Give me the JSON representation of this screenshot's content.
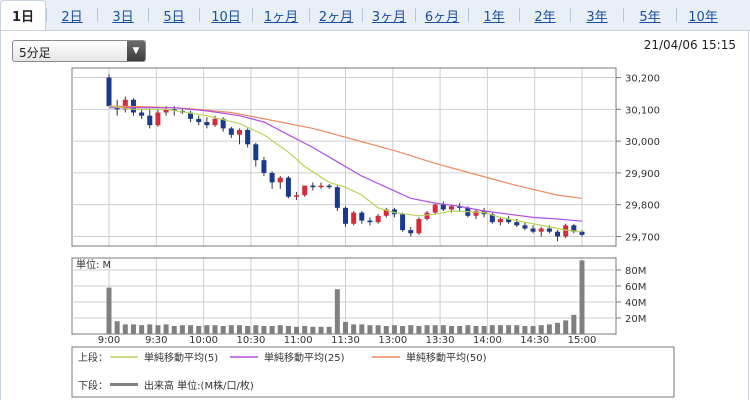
{
  "tabs": [
    {
      "label": "1日",
      "active": true
    },
    {
      "label": "2日"
    },
    {
      "label": "3日"
    },
    {
      "label": "5日"
    },
    {
      "label": "10日"
    },
    {
      "label": "1ヶ月"
    },
    {
      "label": "2ヶ月"
    },
    {
      "label": "3ヶ月"
    },
    {
      "label": "6ヶ月"
    },
    {
      "label": "1年"
    },
    {
      "label": "2年"
    },
    {
      "label": "3年"
    },
    {
      "label": "5年"
    },
    {
      "label": "10年"
    }
  ],
  "interval_select": {
    "value": "5分足"
  },
  "timestamp": "21/04/06 15:15",
  "colors": {
    "up": "#d62b3a",
    "down": "#1a3a8f",
    "ma5": "#b9d45a",
    "ma25": "#b04fe0",
    "ma50": "#f08a60",
    "volume": "#808080",
    "grid": "#cfcfcf"
  },
  "chart_data": [
    {
      "type": "candlestick",
      "x_tick_labels": [
        "9:00",
        "9:30",
        "10:00",
        "10:30",
        "11:00",
        "11:30",
        "13:00",
        "13:30",
        "14:00",
        "14:30",
        "15:00"
      ],
      "ylim": [
        29670,
        30230
      ],
      "y_ticks": [
        30200,
        30100,
        30000,
        29900,
        29800,
        29700
      ],
      "y_tick_labels": [
        "30,200",
        "30,100",
        "30,000",
        "29,900",
        "29,800",
        "29,700"
      ],
      "candles": [
        [
          30200,
          30210,
          30110,
          30110
        ],
        [
          30110,
          30130,
          30080,
          30100
        ],
        [
          30100,
          30140,
          30090,
          30130
        ],
        [
          30130,
          30135,
          30080,
          30090
        ],
        [
          30090,
          30100,
          30070,
          30080
        ],
        [
          30080,
          30100,
          30040,
          30050
        ],
        [
          30050,
          30100,
          30045,
          30090
        ],
        [
          30090,
          30110,
          30080,
          30100
        ],
        [
          30100,
          30110,
          30080,
          30095
        ],
        [
          30095,
          30100,
          30085,
          30090
        ],
        [
          30090,
          30095,
          30060,
          30070
        ],
        [
          30070,
          30080,
          30050,
          30060
        ],
        [
          30060,
          30075,
          30040,
          30050
        ],
        [
          30050,
          30080,
          30045,
          30070
        ],
        [
          30070,
          30075,
          30030,
          30040
        ],
        [
          30040,
          30045,
          30010,
          30020
        ],
        [
          30020,
          30040,
          29990,
          30035
        ],
        [
          30035,
          30040,
          29980,
          29990
        ],
        [
          29990,
          29995,
          29920,
          29940
        ],
        [
          29940,
          29950,
          29890,
          29900
        ],
        [
          29900,
          29905,
          29850,
          29870
        ],
        [
          29870,
          29890,
          29850,
          29885
        ],
        [
          29885,
          29890,
          29820,
          29825
        ],
        [
          29825,
          29840,
          29815,
          29830
        ],
        [
          29830,
          29860,
          29825,
          29860
        ],
        [
          29860,
          29870,
          29845,
          29855
        ],
        [
          29855,
          29870,
          29850,
          29860
        ],
        [
          29860,
          29865,
          29850,
          29855
        ],
        [
          29855,
          29860,
          29780,
          29790
        ],
        [
          29790,
          29795,
          29730,
          29740
        ],
        [
          29740,
          29780,
          29735,
          29775
        ],
        [
          29775,
          29780,
          29740,
          29750
        ],
        [
          29750,
          29760,
          29735,
          29745
        ],
        [
          29745,
          29770,
          29740,
          29765
        ],
        [
          29765,
          29790,
          29760,
          29785
        ],
        [
          29785,
          29790,
          29760,
          29770
        ],
        [
          29770,
          29775,
          29715,
          29720
        ],
        [
          29720,
          29730,
          29700,
          29710
        ],
        [
          29710,
          29760,
          29705,
          29755
        ],
        [
          29755,
          29780,
          29750,
          29775
        ],
        [
          29775,
          29805,
          29770,
          29800
        ],
        [
          29800,
          29810,
          29780,
          29785
        ],
        [
          29785,
          29800,
          29775,
          29795
        ],
        [
          29795,
          29805,
          29780,
          29790
        ],
        [
          29790,
          29795,
          29760,
          29765
        ],
        [
          29765,
          29785,
          29755,
          29780
        ],
        [
          29780,
          29790,
          29760,
          29770
        ],
        [
          29770,
          29775,
          29740,
          29745
        ],
        [
          29745,
          29760,
          29735,
          29755
        ],
        [
          29755,
          29765,
          29740,
          29745
        ],
        [
          29745,
          29755,
          29730,
          29735
        ],
        [
          29735,
          29745,
          29720,
          29725
        ],
        [
          29725,
          29735,
          29710,
          29715
        ],
        [
          29715,
          29730,
          29700,
          29725
        ],
        [
          29725,
          29735,
          29710,
          29715
        ],
        [
          29715,
          29720,
          29685,
          29700
        ],
        [
          29700,
          29740,
          29695,
          29735
        ],
        [
          29735,
          29740,
          29710,
          29715
        ],
        [
          29715,
          29720,
          29700,
          29705
        ]
      ],
      "ma5": [
        [
          0,
          30110
        ],
        [
          3,
          30100
        ],
        [
          7,
          30100
        ],
        [
          12,
          30080
        ],
        [
          16,
          30055
        ],
        [
          19,
          30020
        ],
        [
          22,
          29965
        ],
        [
          24,
          29920
        ],
        [
          27,
          29870
        ],
        [
          29,
          29855
        ],
        [
          31,
          29830
        ],
        [
          33,
          29790
        ],
        [
          35,
          29775
        ],
        [
          38,
          29765
        ],
        [
          40,
          29770
        ],
        [
          42,
          29780
        ],
        [
          44,
          29778
        ],
        [
          46,
          29775
        ],
        [
          48,
          29760
        ],
        [
          51,
          29745
        ],
        [
          54,
          29730
        ],
        [
          56,
          29720
        ],
        [
          58,
          29715
        ]
      ],
      "ma25": [
        [
          0,
          30105
        ],
        [
          4,
          30105
        ],
        [
          8,
          30105
        ],
        [
          12,
          30095
        ],
        [
          16,
          30080
        ],
        [
          19,
          30060
        ],
        [
          22,
          30020
        ],
        [
          25,
          29980
        ],
        [
          28,
          29935
        ],
        [
          31,
          29890
        ],
        [
          34,
          29855
        ],
        [
          37,
          29820
        ],
        [
          40,
          29805
        ],
        [
          43,
          29795
        ],
        [
          46,
          29780
        ],
        [
          49,
          29770
        ],
        [
          52,
          29760
        ],
        [
          55,
          29755
        ],
        [
          58,
          29748
        ]
      ],
      "ma50": [
        [
          0,
          30110
        ],
        [
          5,
          30108
        ],
        [
          10,
          30102
        ],
        [
          15,
          30090
        ],
        [
          20,
          30065
        ],
        [
          25,
          30040
        ],
        [
          30,
          30005
        ],
        [
          35,
          29970
        ],
        [
          40,
          29930
        ],
        [
          45,
          29895
        ],
        [
          50,
          29860
        ],
        [
          55,
          29830
        ],
        [
          58,
          29820
        ]
      ],
      "legend": [
        {
          "label": "単純移動平均(5)"
        },
        {
          "label": "単純移動平均(25)"
        },
        {
          "label": "単純移動平均(50)"
        }
      ],
      "legend_row_label": "上段："
    },
    {
      "type": "bar",
      "unit_label": "単位: M",
      "ylim": [
        0,
        95
      ],
      "y_ticks": [
        20,
        40,
        60,
        80
      ],
      "y_tick_labels": [
        "20M",
        "40M",
        "60M",
        "80M"
      ],
      "values": [
        58,
        16,
        12,
        12,
        11,
        12,
        11,
        12,
        10,
        11,
        11,
        10,
        11,
        11,
        10,
        11,
        11,
        10,
        11,
        10,
        10,
        11,
        10,
        9,
        10,
        9,
        9,
        9,
        56,
        15,
        12,
        12,
        11,
        11,
        10,
        11,
        10,
        11,
        10,
        11,
        11,
        11,
        10,
        10,
        11,
        10,
        10,
        11,
        11,
        11,
        11,
        10,
        10,
        11,
        12,
        14,
        17,
        24,
        92
      ],
      "legend": {
        "label": "出来高 単位:(M株/口/枚)"
      },
      "legend_row_label": "下段："
    }
  ]
}
